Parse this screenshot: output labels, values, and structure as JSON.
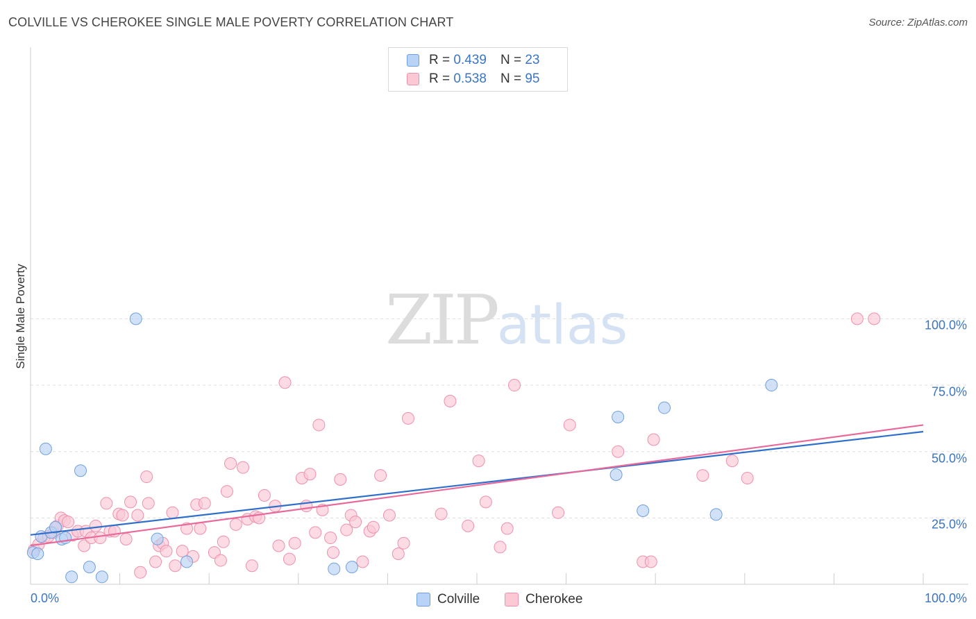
{
  "title": "COLVILLE VS CHEROKEE SINGLE MALE POVERTY CORRELATION CHART",
  "source": "Source: ZipAtlas.com",
  "watermark": {
    "zip": "ZIP",
    "atlas": "atlas"
  },
  "legend": {
    "colville": {
      "r_label": "R = ",
      "r_value": "0.439",
      "n_label": "N = ",
      "n_value": "23"
    },
    "cherokee": {
      "r_label": "R = ",
      "r_value": "0.538",
      "n_label": "N = ",
      "n_value": "95"
    }
  },
  "bottom_legend": {
    "colville": "Colville",
    "cherokee": "Cherokee"
  },
  "colors": {
    "colville_fill": "#b8d3f5",
    "colville_edge": "#6fa0dc",
    "colville_line": "#2f6fcc",
    "cherokee_fill": "#fbc8d6",
    "cherokee_edge": "#ee90ab",
    "cherokee_line": "#e8699a",
    "tick_text": "#3a74c4",
    "grid": "#dddddd"
  },
  "chart_data": {
    "type": "scatter",
    "title": "COLVILLE VS CHEROKEE SINGLE MALE POVERTY CORRELATION CHART",
    "xlabel": "",
    "ylabel": "Single Male Poverty",
    "xlim": [
      0,
      100
    ],
    "ylim": [
      0,
      102
    ],
    "x_tick_labels": [
      "0.0%",
      "100.0%"
    ],
    "y_ticks": [
      25,
      50,
      75,
      100
    ],
    "y_tick_labels": [
      "25.0%",
      "50.0%",
      "75.0%",
      "100.0%"
    ],
    "grid": true,
    "legend_position": "top-center",
    "series": [
      {
        "name": "Colville",
        "r": 0.439,
        "n": 23,
        "trend": {
          "x": [
            0,
            100
          ],
          "y": [
            18.6,
            57.5
          ]
        },
        "points": [
          [
            0.3,
            12.0
          ],
          [
            0.8,
            11.5
          ],
          [
            1.2,
            18.0
          ],
          [
            1.7,
            51.0
          ],
          [
            2.3,
            19.5
          ],
          [
            2.8,
            21.5
          ],
          [
            3.5,
            17.0
          ],
          [
            3.9,
            17.5
          ],
          [
            5.6,
            42.8
          ],
          [
            6.6,
            6.5
          ],
          [
            4.6,
            2.8
          ],
          [
            8.0,
            2.8
          ],
          [
            11.8,
            100.0
          ],
          [
            14.2,
            17.1
          ],
          [
            17.5,
            8.5
          ],
          [
            34.0,
            5.8
          ],
          [
            36.0,
            6.5
          ],
          [
            65.6,
            41.3
          ],
          [
            65.8,
            63.0
          ],
          [
            68.6,
            27.7
          ],
          [
            71.0,
            66.5
          ],
          [
            76.8,
            26.3
          ],
          [
            83.0,
            75.0
          ]
        ]
      },
      {
        "name": "Cherokee",
        "r": 0.538,
        "n": 95,
        "trend": {
          "x": [
            0,
            100
          ],
          "y": [
            14.6,
            60.0
          ]
        },
        "points": [
          [
            0.4,
            13.0
          ],
          [
            0.9,
            15.0
          ],
          [
            1.5,
            17.5
          ],
          [
            2.0,
            18.0
          ],
          [
            2.6,
            19.5
          ],
          [
            3.0,
            22.0
          ],
          [
            3.4,
            25.0
          ],
          [
            3.8,
            24.0
          ],
          [
            4.2,
            23.5
          ],
          [
            4.7,
            18.5
          ],
          [
            5.3,
            20.0
          ],
          [
            6.0,
            14.5
          ],
          [
            6.2,
            20.0
          ],
          [
            6.8,
            17.5
          ],
          [
            7.3,
            22.0
          ],
          [
            7.8,
            17.5
          ],
          [
            8.5,
            30.5
          ],
          [
            8.9,
            20.0
          ],
          [
            9.4,
            20.0
          ],
          [
            9.9,
            26.5
          ],
          [
            10.3,
            26.0
          ],
          [
            10.7,
            17.0
          ],
          [
            11.2,
            31.0
          ],
          [
            12.0,
            26.0
          ],
          [
            12.3,
            4.5
          ],
          [
            13.0,
            40.5
          ],
          [
            13.2,
            30.5
          ],
          [
            14.0,
            8.5
          ],
          [
            14.4,
            14.5
          ],
          [
            14.8,
            15.5
          ],
          [
            15.2,
            12.5
          ],
          [
            15.9,
            27.0
          ],
          [
            16.2,
            7.0
          ],
          [
            17.0,
            12.5
          ],
          [
            17.5,
            21.0
          ],
          [
            18.2,
            10.5
          ],
          [
            18.6,
            30.0
          ],
          [
            19.0,
            21.0
          ],
          [
            19.5,
            30.5
          ],
          [
            20.6,
            12.0
          ],
          [
            21.3,
            9.0
          ],
          [
            21.6,
            16.0
          ],
          [
            22.0,
            35.0
          ],
          [
            22.4,
            45.5
          ],
          [
            23.0,
            22.5
          ],
          [
            23.8,
            44.0
          ],
          [
            24.3,
            24.5
          ],
          [
            24.8,
            7.0
          ],
          [
            25.2,
            25.5
          ],
          [
            25.6,
            25.0
          ],
          [
            26.2,
            33.5
          ],
          [
            27.4,
            29.5
          ],
          [
            27.8,
            14.5
          ],
          [
            28.5,
            76.0
          ],
          [
            29.0,
            9.5
          ],
          [
            29.6,
            15.5
          ],
          [
            30.4,
            40.0
          ],
          [
            30.9,
            29.5
          ],
          [
            31.3,
            41.5
          ],
          [
            31.9,
            19.5
          ],
          [
            32.3,
            60.0
          ],
          [
            32.7,
            28.0
          ],
          [
            33.6,
            17.5
          ],
          [
            33.9,
            12.0
          ],
          [
            34.7,
            39.5
          ],
          [
            35.4,
            20.5
          ],
          [
            35.9,
            26.0
          ],
          [
            36.4,
            23.5
          ],
          [
            37.2,
            8.5
          ],
          [
            38.0,
            20.0
          ],
          [
            38.4,
            21.5
          ],
          [
            39.2,
            41.0
          ],
          [
            40.2,
            26.0
          ],
          [
            41.2,
            11.5
          ],
          [
            41.8,
            15.5
          ],
          [
            42.3,
            62.5
          ],
          [
            46.0,
            26.5
          ],
          [
            47.0,
            69.0
          ],
          [
            49.0,
            22.0
          ],
          [
            50.2,
            46.5
          ],
          [
            51.0,
            31.0
          ],
          [
            52.6,
            14.0
          ],
          [
            53.4,
            21.0
          ],
          [
            54.2,
            75.0
          ],
          [
            59.1,
            27.0
          ],
          [
            60.4,
            60.0
          ],
          [
            65.8,
            50.0
          ],
          [
            68.6,
            8.5
          ],
          [
            69.5,
            8.5
          ],
          [
            69.8,
            54.5
          ],
          [
            75.3,
            41.0
          ],
          [
            78.6,
            46.5
          ],
          [
            80.3,
            40.0
          ],
          [
            92.6,
            100.0
          ],
          [
            94.5,
            100.0
          ]
        ]
      }
    ]
  }
}
